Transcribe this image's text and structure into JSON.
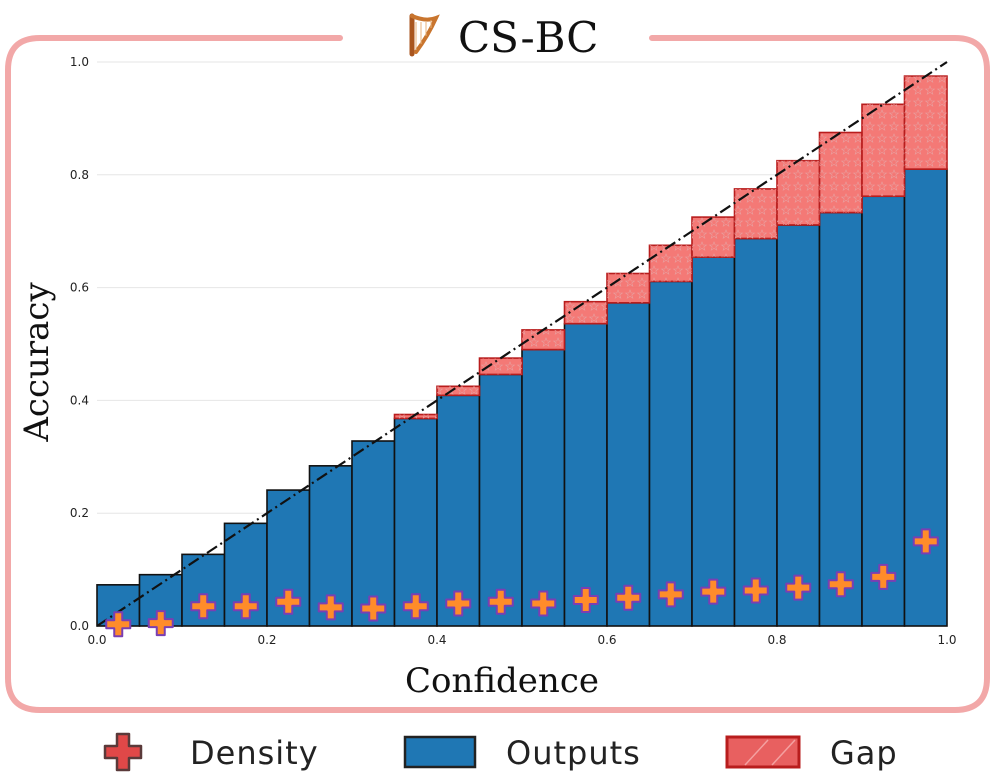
{
  "header": {
    "title": "CS-BC",
    "icon": "harp-icon"
  },
  "colors": {
    "frame": "#f2a8a8",
    "outputs": "#1f77b4",
    "gap": "#f2625e",
    "gap_edge": "#b81d1d",
    "density_fill": "#ff8c2a",
    "density_edge": "#7a3fb3",
    "diagonal": "#111111",
    "grid": "#e6e6e6"
  },
  "chart_data": {
    "type": "bar",
    "xlabel": "Confidence",
    "ylabel": "Accuracy",
    "xlim": [
      0.0,
      1.0
    ],
    "ylim": [
      0.0,
      1.0
    ],
    "xticks": [
      "0.0",
      "0.2",
      "0.4",
      "0.6",
      "0.8",
      "1.0"
    ],
    "yticks": [
      "0.0",
      "0.2",
      "0.4",
      "0.6",
      "0.8",
      "1.0"
    ],
    "grid": "horizontal",
    "bin_width": 0.05,
    "bin_centers": [
      0.025,
      0.075,
      0.125,
      0.175,
      0.225,
      0.275,
      0.325,
      0.375,
      0.425,
      0.475,
      0.525,
      0.575,
      0.625,
      0.675,
      0.725,
      0.775,
      0.825,
      0.875,
      0.925,
      0.975
    ],
    "series": [
      {
        "name": "Outputs",
        "values": [
          0.073,
          0.091,
          0.127,
          0.182,
          0.241,
          0.284,
          0.328,
          0.368,
          0.409,
          0.446,
          0.49,
          0.536,
          0.573,
          0.611,
          0.654,
          0.687,
          0.711,
          0.733,
          0.762,
          0.81
        ]
      },
      {
        "name": "Gap",
        "values": [
          0.0,
          0.0,
          0.0,
          0.0,
          0.0,
          0.0,
          0.0,
          0.007,
          0.016,
          0.029,
          0.035,
          0.039,
          0.052,
          0.064,
          0.071,
          0.088,
          0.114,
          0.142,
          0.163,
          0.165
        ]
      },
      {
        "name": "Density",
        "values": [
          0.003,
          0.005,
          0.035,
          0.035,
          0.043,
          0.033,
          0.031,
          0.035,
          0.04,
          0.043,
          0.04,
          0.046,
          0.05,
          0.056,
          0.061,
          0.063,
          0.068,
          0.074,
          0.087,
          0.15
        ]
      }
    ],
    "legend": {
      "position": "bottom",
      "items": [
        "Density",
        "Outputs",
        "Gap"
      ]
    },
    "reference_line": "perfect calibration diagonal"
  }
}
